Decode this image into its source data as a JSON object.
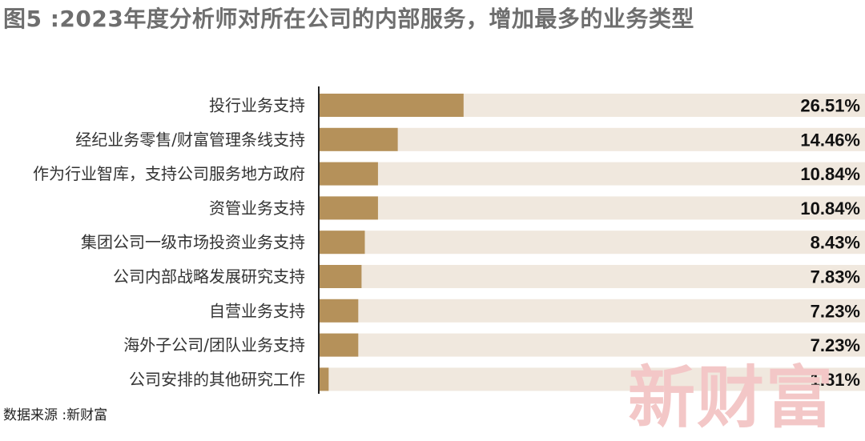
{
  "title": "图5 :2023年度分析师对所在公司的内部服务，增加最多的业务类型",
  "source": "数据来源 :新财富",
  "watermark": "新财富",
  "colors": {
    "bar": "#b5915a",
    "track": "#f0e8de",
    "axis": "#222222",
    "watermark": "#f3c7c7"
  },
  "chart_data": {
    "type": "bar",
    "orientation": "horizontal",
    "categories": [
      "投行业务支持",
      "经纪业务零售/财富管理条线支持",
      "作为行业智库，支持公司服务地方政府",
      "资管业务支持",
      "集团公司一级市场投资业务支持",
      "公司内部战略发展研究支持",
      "自营业务支持",
      "海外子公司/团队业务支持",
      "公司安排的其他研究工作"
    ],
    "values": [
      26.51,
      14.46,
      10.84,
      10.84,
      8.43,
      7.83,
      7.23,
      7.23,
      1.81
    ],
    "value_labels": [
      "26.51%",
      "14.46%",
      "10.84%",
      "10.84%",
      "8.43%",
      "7.83%",
      "7.23%",
      "7.23%",
      "1.81%"
    ],
    "unit": "%",
    "xlim": [
      0,
      100
    ],
    "grid": false,
    "legend": "none"
  }
}
